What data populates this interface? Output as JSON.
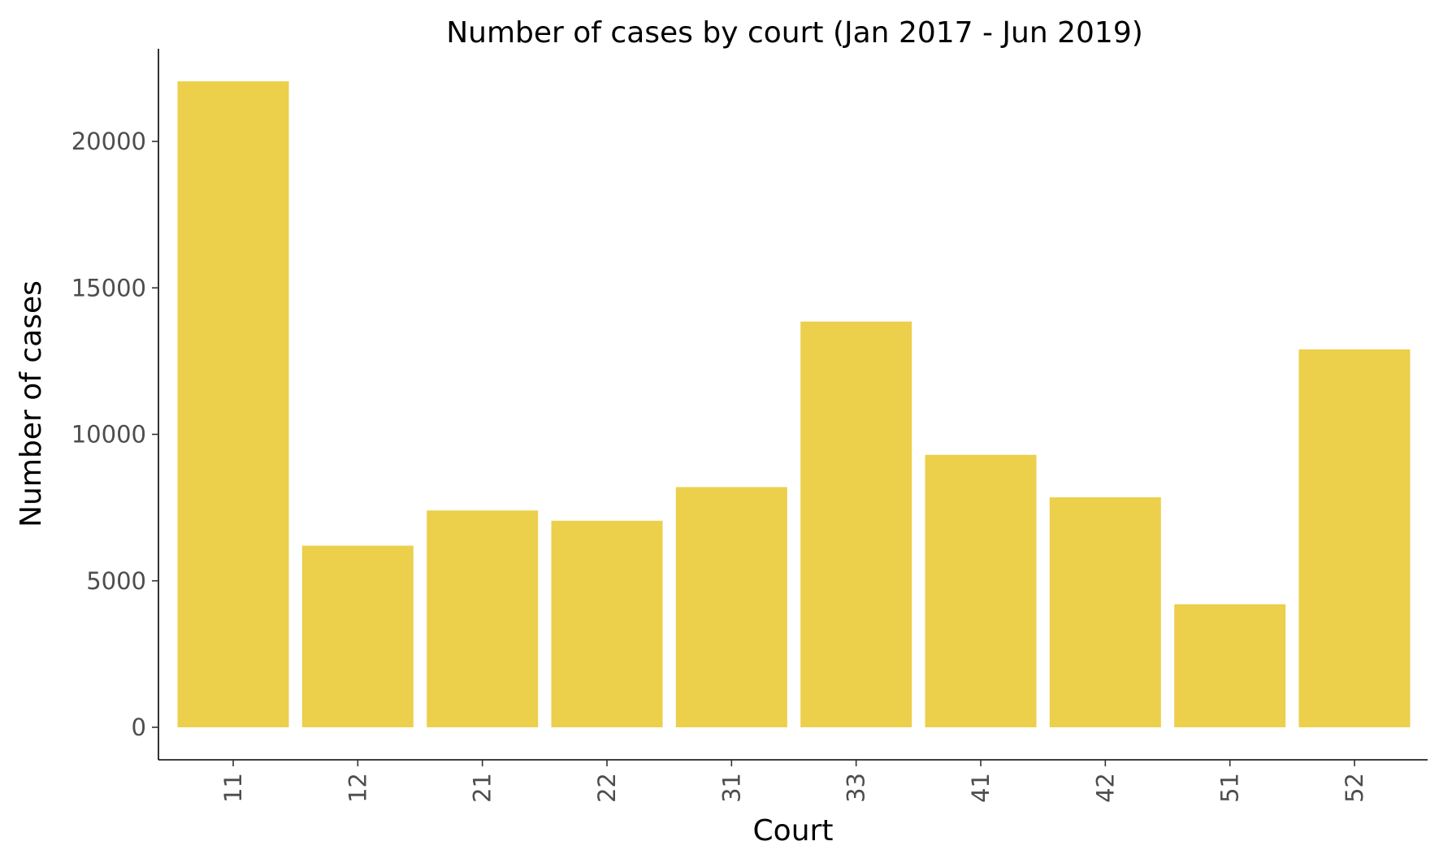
{
  "chart_data": {
    "type": "bar",
    "title": "Number of cases by court (Jan 2017 - Jun 2019)",
    "xlabel": "Court",
    "ylabel": "Number of cases",
    "categories": [
      "11",
      "12",
      "21",
      "22",
      "31",
      "33",
      "41",
      "42",
      "51",
      "52"
    ],
    "values": [
      22050,
      6200,
      7400,
      7050,
      8200,
      13850,
      9300,
      7850,
      4200,
      12900
    ],
    "ylim": [
      0,
      22000
    ],
    "yticks": [
      0,
      5000,
      10000,
      15000,
      20000
    ],
    "bar_color": "#ECCF4B",
    "grid": false,
    "legend": "none"
  }
}
